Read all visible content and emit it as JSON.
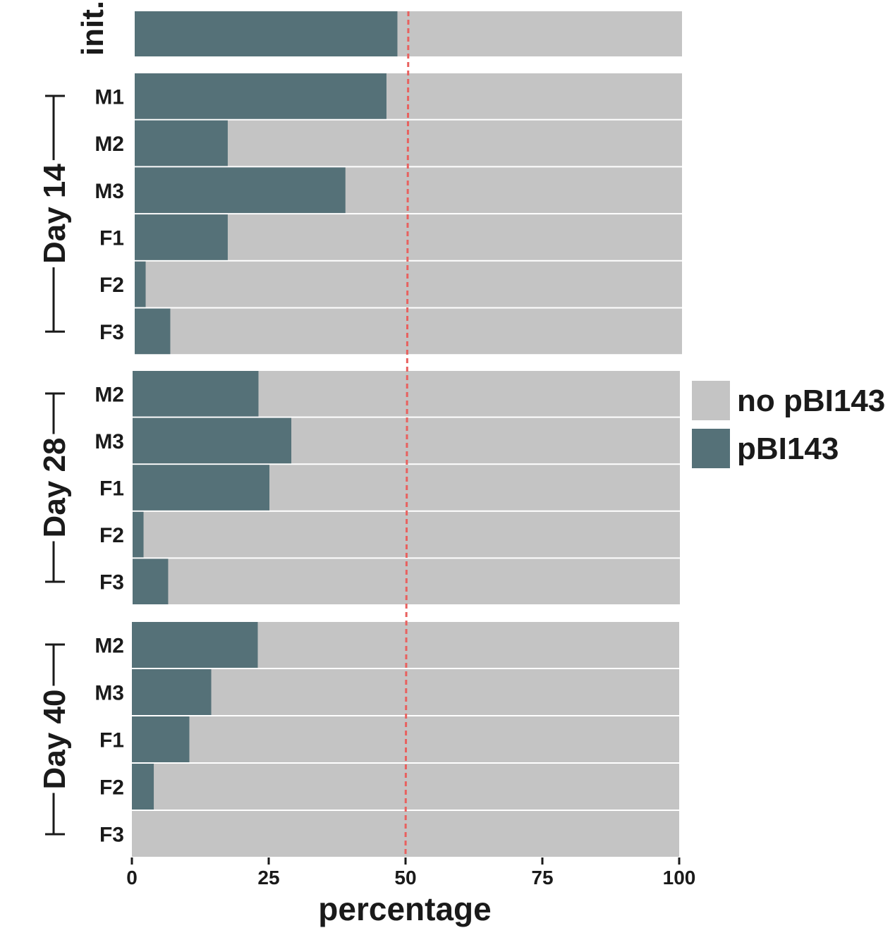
{
  "chart_data": {
    "type": "bar",
    "orientation": "horizontal",
    "stacked": true,
    "xlabel": "percentage",
    "xlim": [
      0,
      100
    ],
    "xticks": [
      0,
      25,
      50,
      75,
      100
    ],
    "reference_line": {
      "x": 50,
      "style": "dashed",
      "color": "#e8615f"
    },
    "legend": {
      "placement": "right",
      "entries": [
        {
          "label": "no pBI143",
          "color": "#c4c4c4"
        },
        {
          "label": "pBI143",
          "color": "#557178"
        }
      ]
    },
    "colors": {
      "pBI143": "#557178",
      "no_pBI143": "#c4c4c4"
    },
    "groups": [
      {
        "label": "init.",
        "rows": [
          {
            "label": "",
            "pBI143": 48
          }
        ]
      },
      {
        "label": "Day 14",
        "rows": [
          {
            "label": "M1",
            "pBI143": 46
          },
          {
            "label": "M2",
            "pBI143": 17
          },
          {
            "label": "M3",
            "pBI143": 38.5
          },
          {
            "label": "F1",
            "pBI143": 17
          },
          {
            "label": "F2",
            "pBI143": 2
          },
          {
            "label": "F3",
            "pBI143": 6.5
          }
        ]
      },
      {
        "label": "Day 28",
        "rows": [
          {
            "label": "M2",
            "pBI143": 23
          },
          {
            "label": "M3",
            "pBI143": 29
          },
          {
            "label": "F1",
            "pBI143": 25
          },
          {
            "label": "F2",
            "pBI143": 2
          },
          {
            "label": "F3",
            "pBI143": 6.5
          }
        ]
      },
      {
        "label": "Day 40",
        "rows": [
          {
            "label": "M2",
            "pBI143": 23
          },
          {
            "label": "M3",
            "pBI143": 14.5
          },
          {
            "label": "F1",
            "pBI143": 10.5
          },
          {
            "label": "F2",
            "pBI143": 4
          },
          {
            "label": "F3",
            "pBI143": 0
          }
        ]
      }
    ]
  }
}
